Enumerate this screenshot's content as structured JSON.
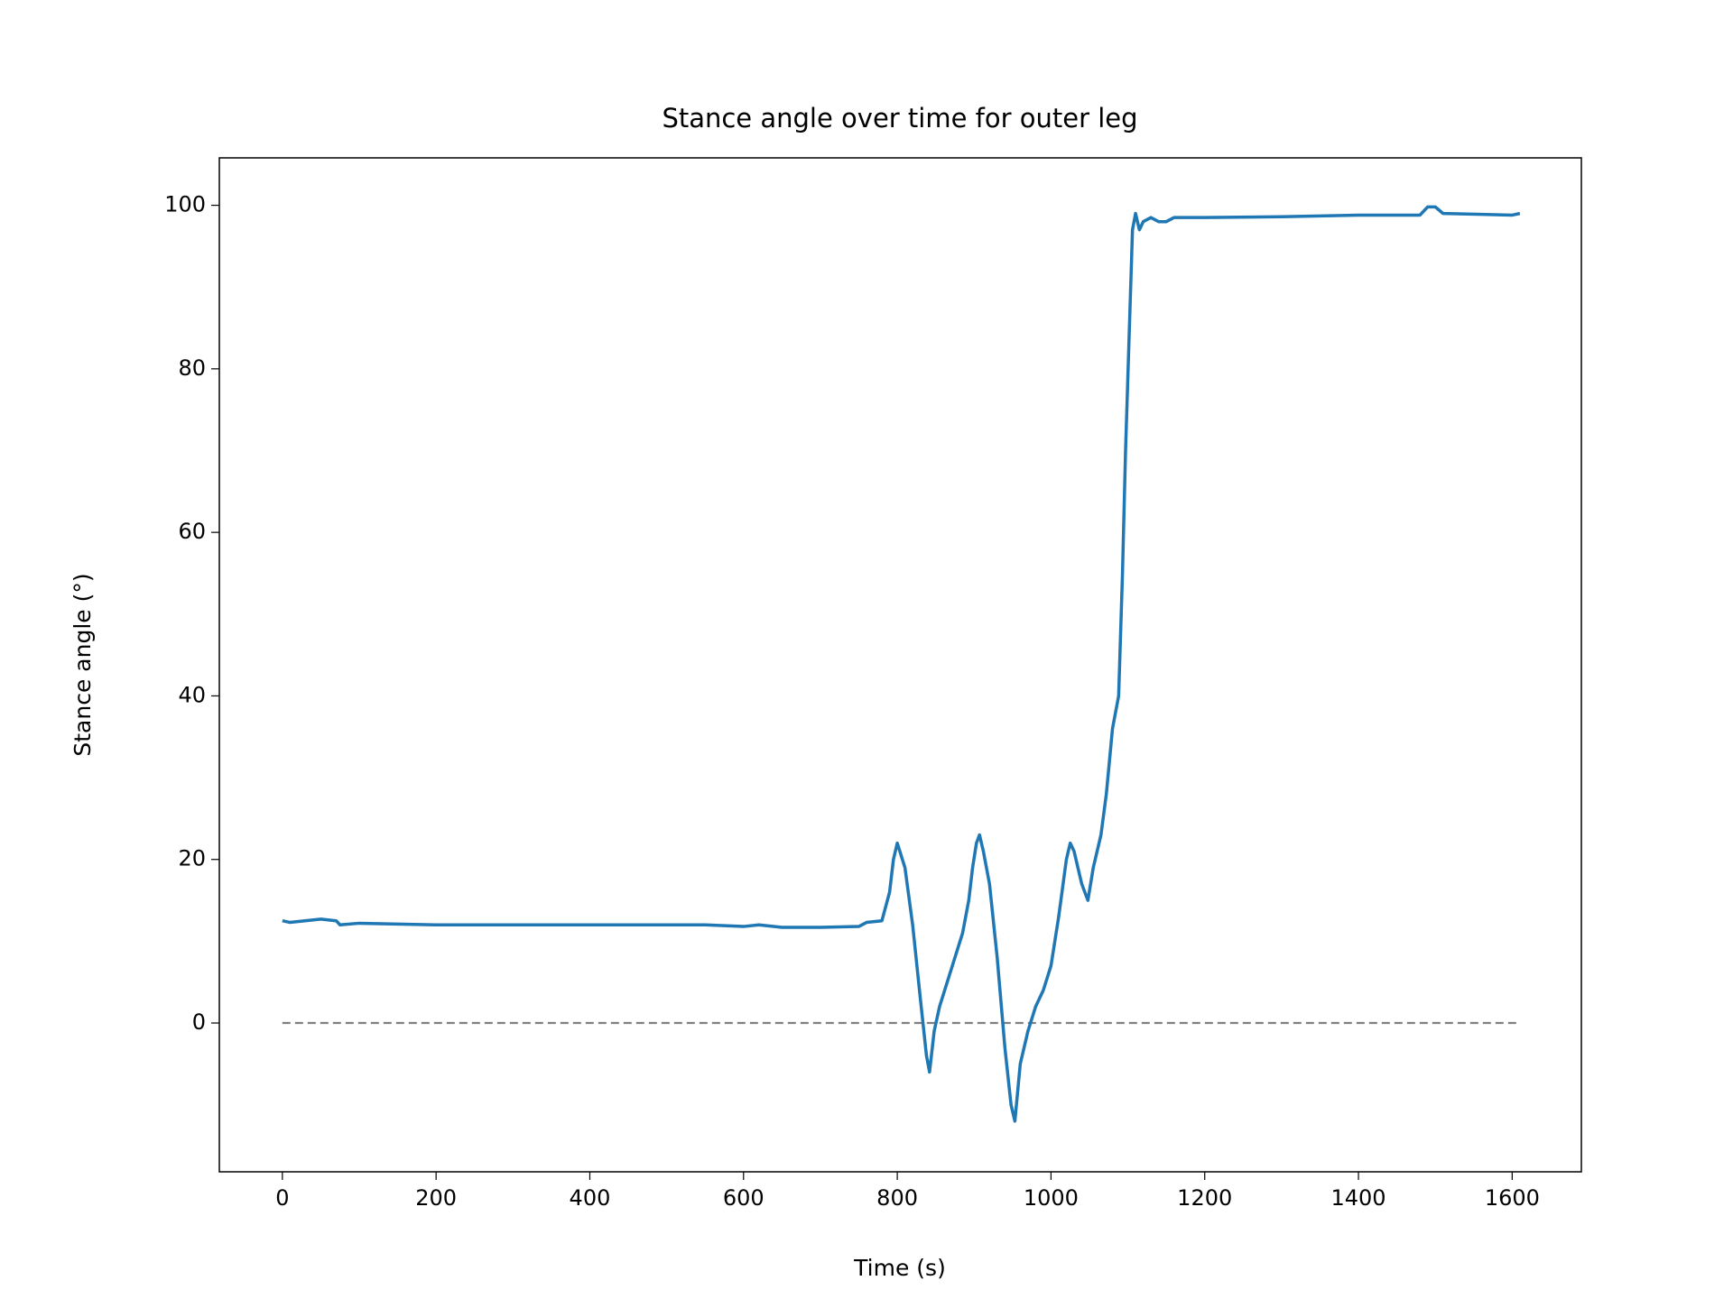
{
  "chart_data": {
    "type": "line",
    "title": "Stance angle over time for outer leg",
    "xlabel": "Time (s)",
    "ylabel": "Stance angle (°)",
    "x": [
      0,
      10,
      50,
      70,
      75,
      100,
      200,
      300,
      400,
      500,
      550,
      600,
      620,
      650,
      700,
      750,
      760,
      780,
      790,
      795,
      800,
      810,
      820,
      830,
      838,
      842,
      848,
      855,
      865,
      875,
      885,
      893,
      898,
      903,
      907,
      912,
      920,
      930,
      940,
      948,
      953,
      960,
      970,
      980,
      990,
      1000,
      1010,
      1020,
      1025,
      1030,
      1040,
      1048,
      1055,
      1065,
      1072,
      1080,
      1088,
      1093,
      1097,
      1102,
      1106,
      1110,
      1115,
      1120,
      1130,
      1140,
      1150,
      1160,
      1200,
      1300,
      1400,
      1480,
      1490,
      1500,
      1510,
      1600,
      1610
    ],
    "values": [
      12.5,
      12.3,
      12.7,
      12.5,
      12.0,
      12.2,
      12.0,
      12.0,
      12.0,
      12.0,
      12.0,
      11.8,
      12.0,
      11.7,
      11.7,
      11.8,
      12.3,
      12.5,
      16,
      20,
      22,
      19,
      12,
      3,
      -4,
      -6,
      -1,
      2,
      5,
      8,
      11,
      15,
      19,
      22,
      23,
      21,
      17,
      8,
      -3,
      -10,
      -12,
      -5,
      -1,
      2,
      4,
      7,
      13,
      20,
      22,
      21,
      17,
      15,
      19,
      23,
      28,
      36,
      40,
      55,
      70,
      85,
      97,
      99,
      97,
      98,
      98.5,
      98,
      98,
      98.5,
      98.5,
      98.6,
      98.8,
      98.8,
      99.8,
      99.8,
      99,
      98.8,
      99
    ],
    "color": "#1f77b4",
    "reference_line": {
      "y": 0,
      "x": [
        0,
        1610
      ],
      "color": "#808080",
      "style": "dashed"
    },
    "xlim": [
      -82,
      1690
    ],
    "ylim": [
      -18.2,
      105.8
    ],
    "xticks": [
      0,
      200,
      400,
      600,
      800,
      1000,
      1200,
      1400,
      1600
    ],
    "yticks": [
      0,
      20,
      40,
      60,
      80,
      100
    ],
    "grid": false
  }
}
